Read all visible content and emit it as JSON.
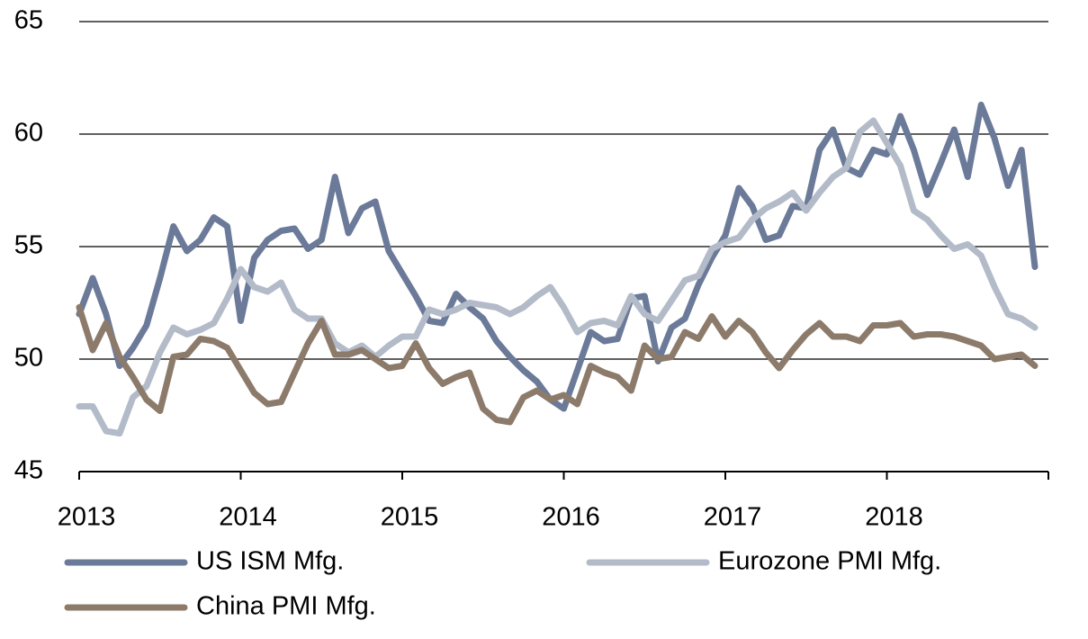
{
  "chart_data": {
    "type": "line",
    "categories": [
      "2013",
      null,
      null,
      null,
      null,
      null,
      null,
      null,
      null,
      null,
      null,
      null,
      "2014",
      null,
      null,
      null,
      null,
      null,
      null,
      null,
      null,
      null,
      null,
      null,
      "2015",
      null,
      null,
      null,
      null,
      null,
      null,
      null,
      null,
      null,
      null,
      null,
      "2016",
      null,
      null,
      null,
      null,
      null,
      null,
      null,
      null,
      null,
      null,
      null,
      "2017",
      null,
      null,
      null,
      null,
      null,
      null,
      null,
      null,
      null,
      null,
      null,
      "2018",
      null,
      null,
      null,
      null,
      null,
      null,
      null,
      null,
      null,
      null,
      null
    ],
    "series": [
      {
        "name": "US ISM Mfg.",
        "color": "#6b7a99",
        "values": [
          52.0,
          53.6,
          52.0,
          49.7,
          50.5,
          51.5,
          53.6,
          55.9,
          54.8,
          55.3,
          56.3,
          55.9,
          51.7,
          54.5,
          55.3,
          55.7,
          55.8,
          54.9,
          55.3,
          58.1,
          55.6,
          56.7,
          57.0,
          54.8,
          53.8,
          52.8,
          51.7,
          51.6,
          52.9,
          52.3,
          51.8,
          50.8,
          50.1,
          49.5,
          49.0,
          48.2,
          47.8,
          49.5,
          51.2,
          50.8,
          50.9,
          52.7,
          52.8,
          49.9,
          51.4,
          51.8,
          53.3,
          54.5,
          55.5,
          57.6,
          56.8,
          55.3,
          55.5,
          56.8,
          56.7,
          59.3,
          60.2,
          58.5,
          58.2,
          59.3,
          59.1,
          60.8,
          59.3,
          57.3,
          58.7,
          60.2,
          58.1,
          61.3,
          59.8,
          57.7,
          59.3,
          54.1
        ]
      },
      {
        "name": "Eurozone PMI Mfg.",
        "color": "#b3bac8",
        "values": [
          47.9,
          47.9,
          46.8,
          46.7,
          48.3,
          48.8,
          50.3,
          51.4,
          51.1,
          51.3,
          51.6,
          52.7,
          54.0,
          53.2,
          53.0,
          53.4,
          52.2,
          51.8,
          51.8,
          50.7,
          50.3,
          50.6,
          50.1,
          50.6,
          51.0,
          51.0,
          52.2,
          52.0,
          52.2,
          52.5,
          52.4,
          52.3,
          52.0,
          52.3,
          52.8,
          53.2,
          52.3,
          51.2,
          51.6,
          51.7,
          51.5,
          52.8,
          52.0,
          51.7,
          52.6,
          53.5,
          53.7,
          54.9,
          55.2,
          55.4,
          56.2,
          56.7,
          57.0,
          57.4,
          56.6,
          57.4,
          58.1,
          58.5,
          60.1,
          60.6,
          59.6,
          58.6,
          56.6,
          56.2,
          55.5,
          54.9,
          55.1,
          54.6,
          53.2,
          52.0,
          51.8,
          51.4
        ]
      },
      {
        "name": "China PMI Mfg.",
        "color": "#8c7b6b",
        "values": [
          52.3,
          50.4,
          51.6,
          50.1,
          49.2,
          48.2,
          47.7,
          50.1,
          50.2,
          50.9,
          50.8,
          50.5,
          49.5,
          48.5,
          48.0,
          48.1,
          49.4,
          50.7,
          51.7,
          50.2,
          50.2,
          50.4,
          50.0,
          49.6,
          49.7,
          50.7,
          49.6,
          48.9,
          49.2,
          49.4,
          47.8,
          47.3,
          47.2,
          48.3,
          48.6,
          48.2,
          48.4,
          48.0,
          49.7,
          49.4,
          49.2,
          48.6,
          50.6,
          50.0,
          50.1,
          51.2,
          50.9,
          51.9,
          51.0,
          51.7,
          51.2,
          50.3,
          49.6,
          50.4,
          51.1,
          51.6,
          51.0,
          51.0,
          50.8,
          51.5,
          51.5,
          51.6,
          51.0,
          51.1,
          51.1,
          51.0,
          50.8,
          50.6,
          50.0,
          50.1,
          50.2,
          49.7
        ]
      }
    ],
    "ylim": [
      45,
      65
    ],
    "yticks": [
      45,
      50,
      55,
      60,
      65
    ],
    "grid": true,
    "legend": "bottom"
  }
}
